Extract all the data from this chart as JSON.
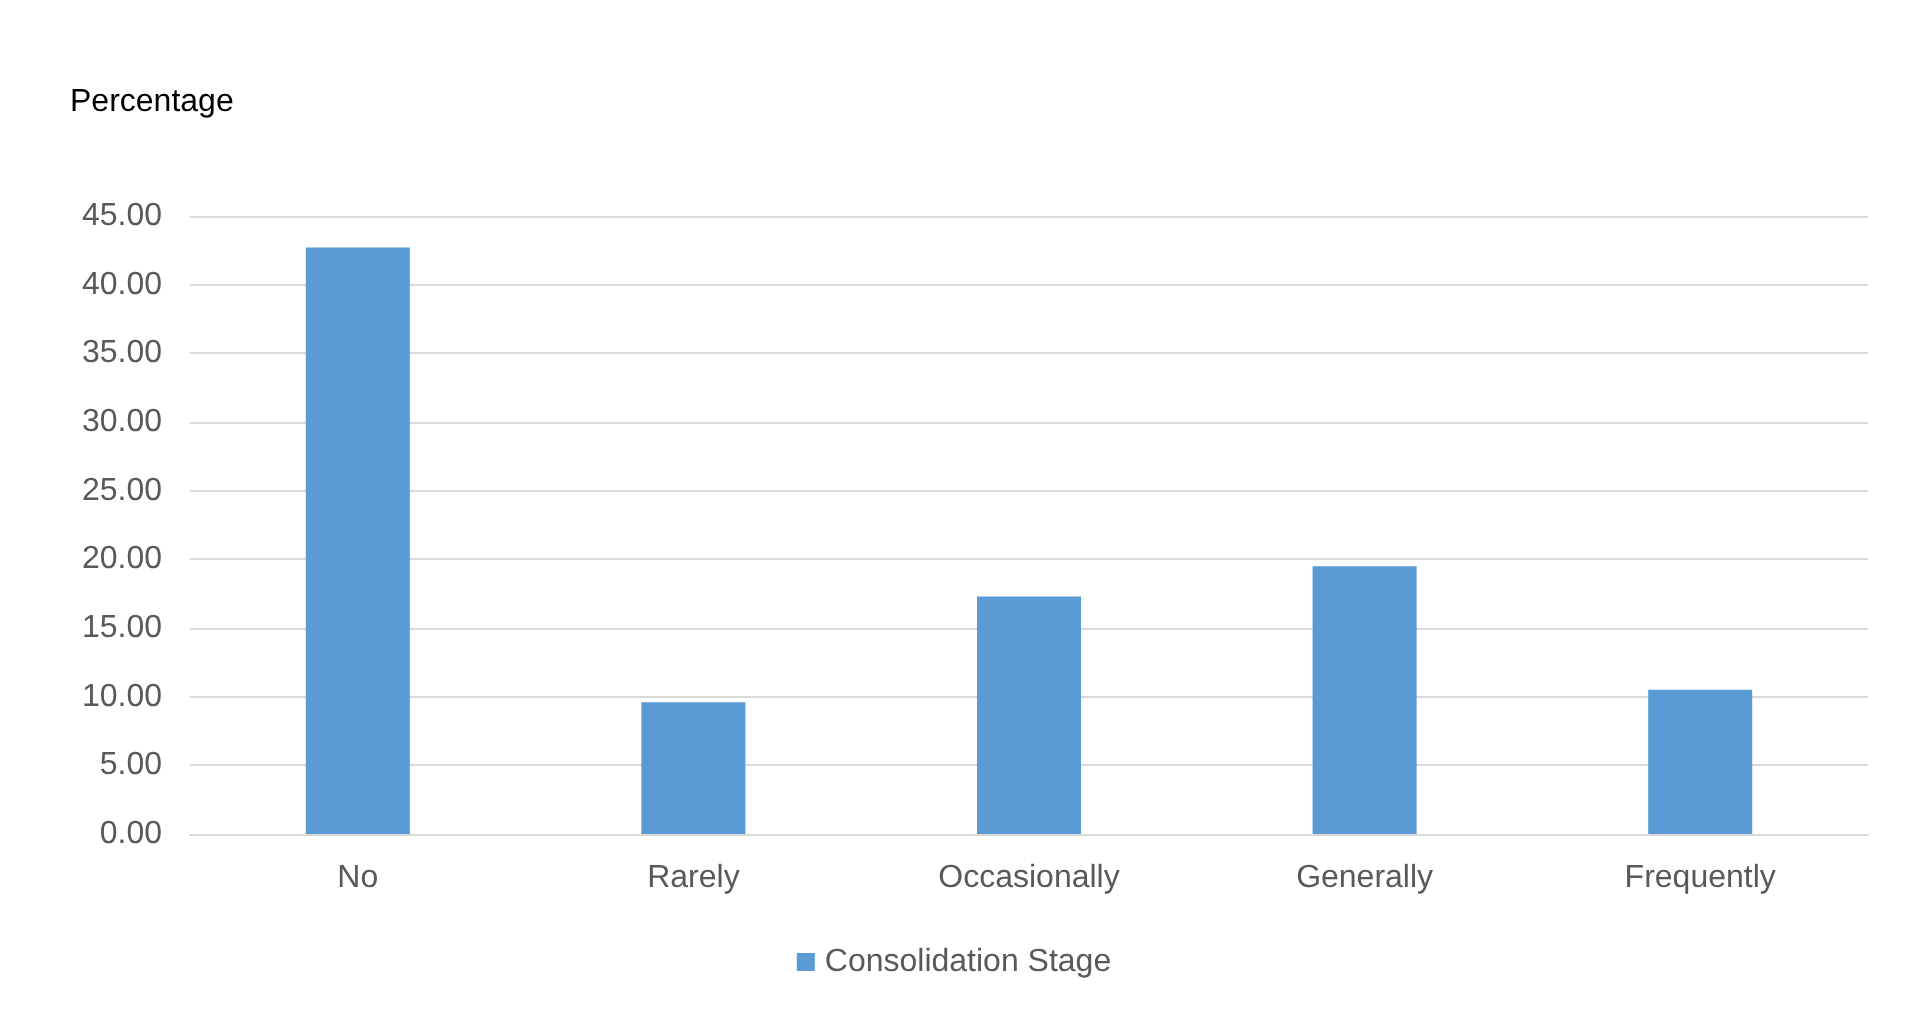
{
  "chart_data": {
    "type": "bar",
    "ylabel": "Percentage",
    "categories": [
      "No",
      "Rarely",
      "Occasionally",
      "Generally",
      "Frequently"
    ],
    "series": [
      {
        "name": "Consolidation Stage",
        "color": "#5b9bd5",
        "values": [
          42.7,
          9.6,
          17.3,
          19.5,
          10.5
        ]
      }
    ],
    "ylim": [
      0,
      45
    ],
    "yticks": [
      {
        "value": 0,
        "label": "0.00"
      },
      {
        "value": 5,
        "label": "5.00"
      },
      {
        "value": 10,
        "label": "10.00"
      },
      {
        "value": 15,
        "label": "15.00"
      },
      {
        "value": 20,
        "label": "20.00"
      },
      {
        "value": 25,
        "label": "25.00"
      },
      {
        "value": 30,
        "label": "30.00"
      },
      {
        "value": 35,
        "label": "35.00"
      },
      {
        "value": 40,
        "label": "40.00"
      },
      {
        "value": 45,
        "label": "45.00"
      }
    ],
    "grid": "y",
    "legend": "bottom"
  }
}
